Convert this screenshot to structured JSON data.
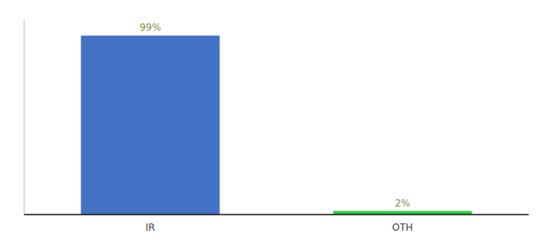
{
  "chart_data": {
    "type": "bar",
    "categories": [
      "IR",
      "OTH"
    ],
    "values": [
      99,
      2
    ],
    "value_labels": [
      "99%",
      "2%"
    ],
    "colors": [
      "#4472c4",
      "#2ecc40"
    ],
    "ylim": [
      0,
      108
    ],
    "data_labels": true,
    "tick_labels": "x"
  }
}
